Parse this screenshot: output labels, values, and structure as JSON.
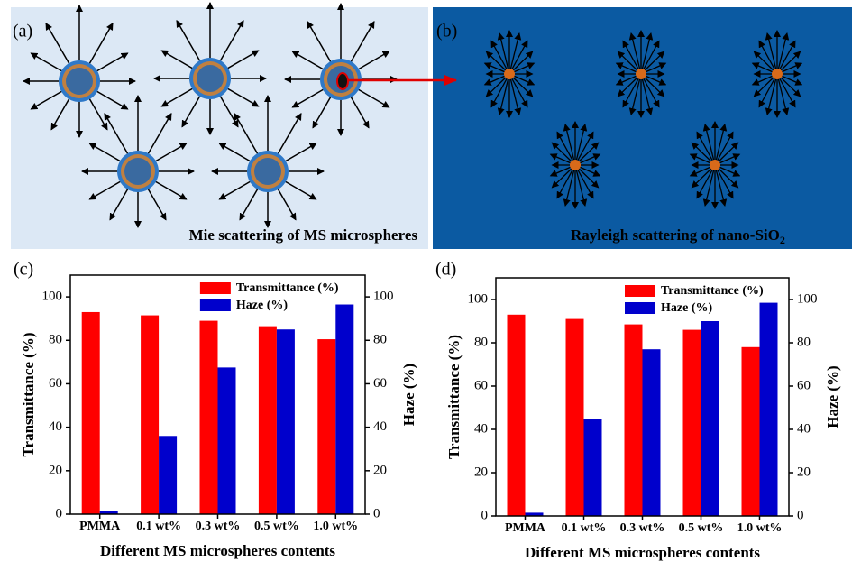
{
  "panels": {
    "a": {
      "label": "(a)",
      "caption": "Mie scattering of MS microspheres"
    },
    "b": {
      "label": "(b)",
      "caption": "Rayleigh scattering of nano-SiO",
      "caption_subscript": "2"
    }
  },
  "chart_data": [
    {
      "type": "bar",
      "label": "(c)",
      "categories": [
        "PMMA",
        "0.1 wt%",
        "0.3 wt%",
        "0.5 wt%",
        "1.0 wt%"
      ],
      "series": [
        {
          "name": "Transmittance (%)",
          "color": "#ff0000",
          "values": [
            93,
            91.5,
            89,
            86.5,
            80.5
          ]
        },
        {
          "name": "Haze (%)",
          "color": "#0000cc",
          "axis": "y2",
          "values": [
            1.5,
            36,
            67.5,
            85,
            96.5
          ]
        }
      ],
      "x_label": "Different MS microspheres contents",
      "y_label": "Transmittance (%)",
      "y2_label": "Haze (%)",
      "ylim": [
        0,
        110
      ],
      "yticks": [
        0,
        20,
        40,
        60,
        80,
        100
      ],
      "y2lim": [
        0,
        110
      ],
      "y2ticks": [
        0,
        20,
        40,
        60,
        80,
        100
      ],
      "legend": "upper center"
    },
    {
      "type": "bar",
      "label": "(d)",
      "categories": [
        "PMMA",
        "0.1 wt%",
        "0.3 wt%",
        "0.5 wt%",
        "1.0 wt%"
      ],
      "series": [
        {
          "name": "Transmittance (%)",
          "color": "#ff0000",
          "values": [
            93,
            91,
            88.5,
            86,
            78
          ]
        },
        {
          "name": "Haze (%)",
          "color": "#0000cc",
          "axis": "y2",
          "values": [
            1.5,
            45,
            77,
            90,
            98.5
          ]
        }
      ],
      "x_label": "Different MS microspheres contents",
      "y_label": "Transmittance (%)",
      "y2_label": "Haze (%)",
      "ylim": [
        0,
        110
      ],
      "yticks": [
        0,
        20,
        40,
        60,
        80,
        100
      ],
      "y2lim": [
        0,
        110
      ],
      "y2ticks": [
        0,
        20,
        40,
        60,
        80,
        100
      ],
      "legend": "upper center"
    }
  ]
}
